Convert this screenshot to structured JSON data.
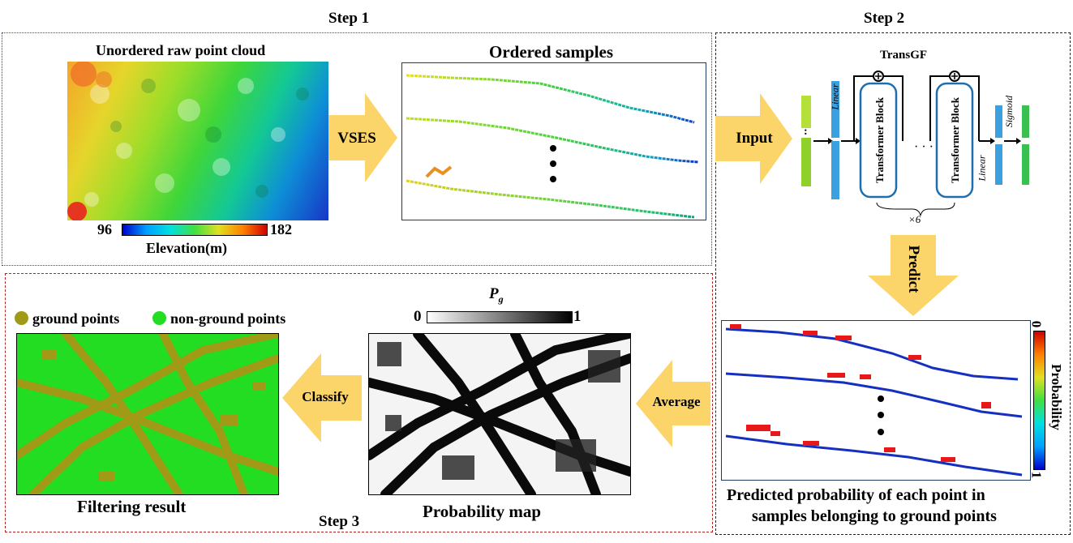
{
  "step1": {
    "title": "Step 1",
    "raw_cloud_title": "Unordered raw point cloud",
    "colorbar_min": "96",
    "colorbar_max": "182",
    "colorbar_label": "Elevation(m)",
    "vses_label": "VSES",
    "ordered_title": "Ordered samples"
  },
  "step2": {
    "title": "Step 2",
    "input_label": "Input",
    "network_name": "TransGF",
    "linear_in": "Linear",
    "transformer_block": "Transformer Block",
    "linear_out": "Linear",
    "sigmoid": "Sigmoid",
    "repeat": "×6",
    "predict_label": "Predict",
    "prob_axis_label": "Probability",
    "prob_top": "0",
    "prob_bottom": "1",
    "caption_line1": "Predicted probability of each point in",
    "caption_line2": "samples belonging to ground points"
  },
  "step3": {
    "title": "Step 3",
    "legend_ground": "ground points",
    "legend_nonground": "non-ground points",
    "filter_caption": "Filtering result",
    "classify_label": "Classify",
    "pg_label": "P",
    "pg_sub": "g",
    "pg_min": "0",
    "pg_max": "1",
    "prob_map_caption": "Probability map",
    "average_label": "Average"
  },
  "colors": {
    "arrow": "#fbd46a",
    "step1_border": "#2b4f7a",
    "step2_border": "#222222",
    "step3_border": "#b22222",
    "ground": "#a19a16",
    "nonground": "#22dd22"
  }
}
